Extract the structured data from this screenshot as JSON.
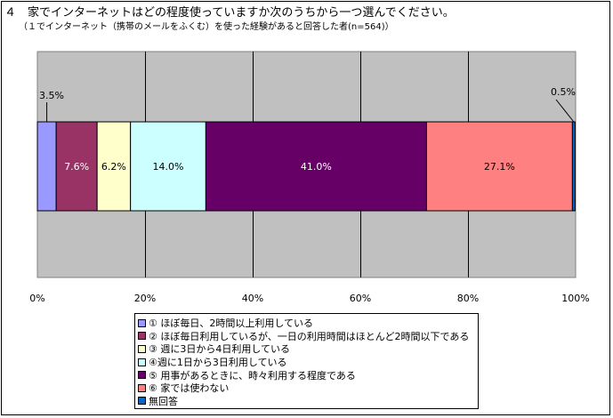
{
  "title": "４　家でインターネットはどの程度使っていますか次のうちから一つ選んでください。",
  "subtitle": "（１でインターネット（携帯のメールをふくむ）を使った経験があると回答した者(n=564)）",
  "colors": {
    "plot_background": "#c0c0c0",
    "grid": "#000000",
    "series": [
      "#9999ff",
      "#993366",
      "#ffffcc",
      "#ccffff",
      "#660066",
      "#ff8080",
      "#0066cc"
    ]
  },
  "chart_data": {
    "type": "bar",
    "orientation": "horizontal",
    "stacked": true,
    "percent_stacked": true,
    "xlim": [
      0,
      100
    ],
    "x_ticks": [
      "0%",
      "20%",
      "40%",
      "60%",
      "80%",
      "100%"
    ],
    "grid": true,
    "legend_position": "bottom",
    "series": [
      {
        "name": "① ほぼ毎日、2時間以上利用している",
        "values": [
          3.5
        ],
        "label": "3.5%"
      },
      {
        "name": "② ほぼ毎日利用しているが、一日の利用時間はほとんど2時間以下である",
        "values": [
          7.6
        ],
        "label": "7.6%"
      },
      {
        "name": "③ 週に3日から4日利用している",
        "values": [
          6.2
        ],
        "label": "6.2%"
      },
      {
        "name": "④週に1日から3日利用している",
        "values": [
          14.0
        ],
        "label": "14.0%"
      },
      {
        "name": "⑤ 用事があるときに、時々利用する程度である",
        "values": [
          41.0
        ],
        "label": "41.0%"
      },
      {
        "name": "⑥ 家では使わない",
        "values": [
          27.1
        ],
        "label": "27.1%"
      },
      {
        "name": "無回答",
        "values": [
          0.5
        ],
        "label": "0.5%"
      }
    ]
  }
}
